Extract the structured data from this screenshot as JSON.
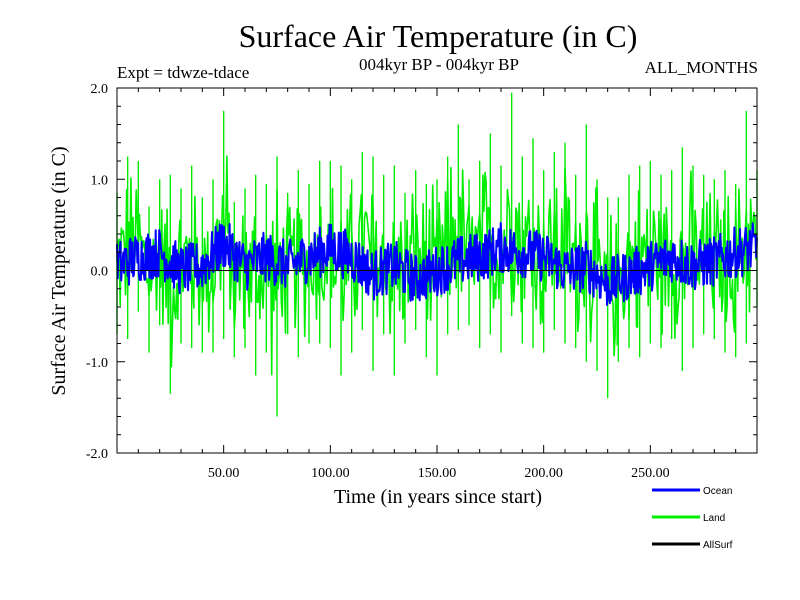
{
  "chart_data": {
    "type": "line",
    "title": "Surface Air Temperature (in C)",
    "subtitle_left": "Expt = tdwze-tdace",
    "subtitle_center": "004kyr BP - 004kyr BP",
    "subtitle_right": "ALL_MONTHS",
    "xlabel": "Time (in years since start)",
    "ylabel": "Surface Air Temperature (in C)",
    "xlim": [
      0,
      300
    ],
    "ylim": [
      -2.0,
      2.0
    ],
    "x_ticks": [
      {
        "value": 50,
        "label": "50.00"
      },
      {
        "value": 100,
        "label": "100.00"
      },
      {
        "value": 150,
        "label": "150.00"
      },
      {
        "value": 200,
        "label": "200.00"
      },
      {
        "value": 250,
        "label": "250.00"
      }
    ],
    "y_ticks": [
      {
        "value": 2.0,
        "label": "2.0"
      },
      {
        "value": 1.0,
        "label": "1.0"
      },
      {
        "value": 0.0,
        "label": "0.0"
      },
      {
        "value": -1.0,
        "label": "-1.0"
      },
      {
        "value": -2.0,
        "label": "-2.0"
      }
    ],
    "grid": false,
    "legend_position": "bottom-right",
    "series": [
      {
        "name": "Land",
        "color": "#00ee00",
        "x": [
          0,
          5,
          10,
          15,
          20,
          25,
          30,
          35,
          40,
          45,
          50,
          55,
          60,
          65,
          70,
          75,
          80,
          85,
          90,
          95,
          100,
          105,
          110,
          115,
          120,
          125,
          130,
          135,
          140,
          145,
          150,
          155,
          160,
          165,
          170,
          175,
          180,
          185,
          190,
          195,
          200,
          205,
          210,
          215,
          220,
          225,
          230,
          235,
          240,
          245,
          250,
          255,
          260,
          265,
          270,
          275,
          280,
          285,
          290,
          295,
          300
        ],
        "max": [
          0.85,
          1.25,
          1.2,
          0.7,
          1.0,
          1.05,
          0.9,
          1.15,
          0.8,
          1.0,
          1.75,
          0.75,
          0.9,
          1.05,
          0.95,
          1.25,
          0.85,
          1.1,
          0.95,
          1.2,
          1.2,
          1.15,
          1.0,
          1.3,
          1.25,
          1.05,
          1.15,
          0.85,
          1.1,
          0.95,
          1.0,
          1.25,
          1.6,
          1.0,
          1.2,
          1.5,
          1.15,
          1.95,
          1.25,
          1.45,
          1.1,
          1.3,
          1.4,
          1.05,
          1.6,
          1.0,
          0.8,
          0.8,
          1.05,
          1.15,
          1.2,
          1.05,
          1.1,
          1.35,
          1.15,
          1.05,
          1.0,
          1.1,
          0.95,
          1.75,
          1.1
        ],
        "min": [
          -0.7,
          -0.75,
          -0.45,
          -0.9,
          -0.6,
          -1.35,
          -0.8,
          -0.85,
          -0.9,
          -0.9,
          -0.75,
          -0.95,
          -0.85,
          -1.15,
          -0.9,
          -1.6,
          -0.7,
          -0.95,
          -0.8,
          -0.8,
          -0.85,
          -1.15,
          -0.9,
          -0.65,
          -1.1,
          -0.7,
          -1.15,
          -0.8,
          -0.65,
          -0.95,
          -1.15,
          -0.7,
          -0.65,
          -0.6,
          -0.85,
          -0.7,
          -0.9,
          -0.5,
          -0.8,
          -0.85,
          -0.9,
          -0.65,
          -0.8,
          -0.85,
          -1.0,
          -1.1,
          -1.4,
          -1.0,
          -0.85,
          -0.95,
          -0.8,
          -0.85,
          -0.75,
          -1.1,
          -0.85,
          -0.7,
          -0.75,
          -0.9,
          -0.95,
          -0.8,
          -0.4
        ]
      },
      {
        "name": "Ocean",
        "color": "#0000ff",
        "x": [
          0,
          10,
          20,
          30,
          40,
          50,
          60,
          70,
          80,
          90,
          100,
          110,
          120,
          130,
          140,
          150,
          160,
          170,
          180,
          190,
          200,
          210,
          220,
          230,
          240,
          250,
          260,
          270,
          280,
          290,
          300
        ],
        "values": [
          0.05,
          0.15,
          0.2,
          0.0,
          0.05,
          0.3,
          0.05,
          0.15,
          0.05,
          0.15,
          0.25,
          0.15,
          -0.05,
          0.05,
          -0.1,
          0.0,
          0.1,
          0.15,
          0.25,
          0.2,
          0.15,
          0.0,
          0.05,
          -0.15,
          -0.05,
          0.05,
          0.15,
          0.05,
          0.1,
          0.2,
          0.25
        ],
        "spread": 0.28
      },
      {
        "name": "AllSurf",
        "color": "#000000",
        "values": []
      }
    ]
  }
}
